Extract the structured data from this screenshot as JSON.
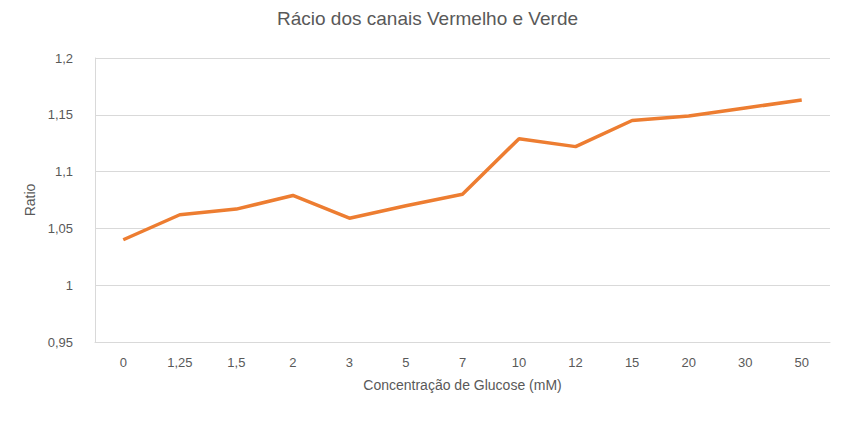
{
  "chart_data": {
    "type": "line",
    "title": "Rácio dos canais Vermelho e Verde",
    "x_label": "Concentração de Glucose (mM)",
    "y_label": "Ratio",
    "categories": [
      "0",
      "1,25",
      "1,5",
      "2",
      "3",
      "5",
      "7",
      "10",
      "12",
      "15",
      "20",
      "30",
      "50"
    ],
    "values": [
      1.04,
      1.062,
      1.067,
      1.079,
      1.059,
      1.07,
      1.08,
      1.129,
      1.122,
      1.145,
      1.149,
      1.156,
      1.163
    ],
    "color": "#ed7d31",
    "ylim": [
      0.95,
      1.2
    ],
    "yticks": [
      {
        "value": 0.95,
        "label": "0,95"
      },
      1,
      {
        "value": 1.05,
        "label": "1,05"
      },
      {
        "value": 1.1,
        "label": "1,1"
      },
      {
        "value": 1.15,
        "label": "1,15"
      },
      {
        "value": 1.2,
        "label": "1,2"
      }
    ],
    "grid": true
  }
}
